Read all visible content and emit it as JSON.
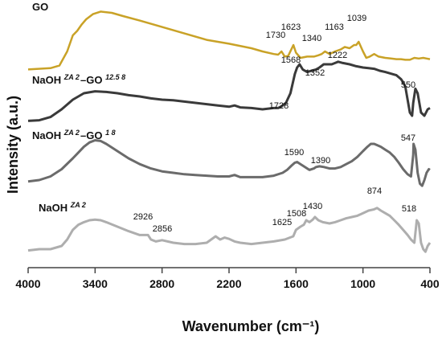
{
  "chart_data": {
    "type": "line",
    "title": "",
    "xlabel": "Wavenumber (cm⁻¹)",
    "ylabel": "Intensity (a.u.)",
    "xlim": [
      4000,
      400
    ],
    "x_reversed": true,
    "x_ticks": [
      4000,
      3400,
      2800,
      2200,
      1600,
      1000,
      400
    ],
    "y_ticks": "none",
    "grid": false,
    "legend": "none",
    "series": [
      {
        "name": "GO",
        "name_parts": {
          "base": "GO",
          "sup": "",
          "mid": "",
          "tail_sup": ""
        },
        "color": "#c9a227",
        "x": [
          4000,
          3800,
          3720,
          3650,
          3600,
          3560,
          3520,
          3480,
          3420,
          3350,
          3250,
          3150,
          3000,
          2800,
          2600,
          2400,
          2200,
          2000,
          1900,
          1800,
          1760,
          1730,
          1700,
          1670,
          1640,
          1623,
          1600,
          1560,
          1500,
          1440,
          1400,
          1370,
          1340,
          1300,
          1250,
          1200,
          1163,
          1120,
          1080,
          1060,
          1039,
          1000,
          970,
          940,
          900,
          860,
          800,
          750,
          700,
          660,
          620,
          580,
          540,
          500,
          460,
          430,
          400
        ],
        "y": [
          0.02,
          0.04,
          0.08,
          0.3,
          0.55,
          0.62,
          0.72,
          0.8,
          0.88,
          0.92,
          0.9,
          0.85,
          0.78,
          0.68,
          0.58,
          0.48,
          0.42,
          0.35,
          0.3,
          0.26,
          0.25,
          0.3,
          0.22,
          0.23,
          0.34,
          0.4,
          0.28,
          0.2,
          0.22,
          0.22,
          0.24,
          0.26,
          0.3,
          0.26,
          0.3,
          0.33,
          0.37,
          0.35,
          0.4,
          0.4,
          0.45,
          0.3,
          0.2,
          0.22,
          0.26,
          0.22,
          0.2,
          0.19,
          0.18,
          0.18,
          0.17,
          0.17,
          0.2,
          0.19,
          0.2,
          0.19,
          0.18
        ]
      },
      {
        "name": "NaOH ZA 2–GO 12.5 8",
        "name_parts": {
          "base": "NaOH ",
          "sup": "ZA 2",
          "mid": "–GO ",
          "tail_sup": "12.5 8"
        },
        "color": "#3a3a3a",
        "x": [
          4000,
          3900,
          3800,
          3700,
          3600,
          3500,
          3400,
          3300,
          3200,
          3100,
          3000,
          2900,
          2800,
          2700,
          2600,
          2500,
          2400,
          2300,
          2200,
          2150,
          2100,
          2000,
          1900,
          1800,
          1760,
          1728,
          1690,
          1650,
          1610,
          1590,
          1568,
          1540,
          1500,
          1460,
          1420,
          1390,
          1352,
          1320,
          1280,
          1250,
          1222,
          1180,
          1120,
          1060,
          1000,
          950,
          900,
          850,
          800,
          760,
          720,
          700,
          680,
          660,
          640,
          620,
          600,
          580,
          560,
          550,
          530,
          510,
          480,
          450,
          420,
          400
        ],
        "y": [
          0.12,
          0.13,
          0.18,
          0.3,
          0.45,
          0.55,
          0.58,
          0.57,
          0.55,
          0.52,
          0.5,
          0.47,
          0.45,
          0.44,
          0.42,
          0.4,
          0.38,
          0.36,
          0.34,
          0.36,
          0.33,
          0.32,
          0.3,
          0.32,
          0.32,
          0.35,
          0.4,
          0.55,
          0.85,
          0.95,
          1.0,
          0.92,
          0.88,
          0.9,
          0.92,
          0.95,
          1.0,
          1.0,
          1.0,
          1.02,
          1.04,
          1.02,
          1.0,
          0.97,
          0.95,
          0.94,
          0.93,
          0.9,
          0.88,
          0.86,
          0.84,
          0.83,
          0.8,
          0.77,
          0.72,
          0.65,
          0.45,
          0.25,
          0.2,
          0.4,
          0.62,
          0.55,
          0.25,
          0.2,
          0.3,
          0.32
        ]
      },
      {
        "name": "NaOH ZA 2–GO 1 8",
        "name_parts": {
          "base": "NaOH ",
          "sup": "ZA 2",
          "mid": "–GO ",
          "tail_sup": "1 8"
        },
        "color": "#6b6b6b",
        "x": [
          4000,
          3900,
          3800,
          3700,
          3600,
          3550,
          3500,
          3450,
          3400,
          3350,
          3300,
          3200,
          3100,
          3000,
          2900,
          2800,
          2700,
          2600,
          2500,
          2400,
          2300,
          2200,
          2150,
          2100,
          2000,
          1900,
          1800,
          1720,
          1680,
          1640,
          1610,
          1590,
          1560,
          1520,
          1480,
          1440,
          1420,
          1390,
          1350,
          1300,
          1250,
          1200,
          1150,
          1100,
          1050,
          1000,
          960,
          930,
          900,
          870,
          840,
          800,
          760,
          720,
          680,
          640,
          600,
          570,
          550,
          547,
          530,
          510,
          490,
          470,
          450,
          430,
          410,
          400
        ],
        "y": [
          0.18,
          0.2,
          0.25,
          0.35,
          0.5,
          0.58,
          0.66,
          0.72,
          0.75,
          0.74,
          0.7,
          0.6,
          0.5,
          0.42,
          0.36,
          0.32,
          0.3,
          0.28,
          0.27,
          0.26,
          0.25,
          0.25,
          0.27,
          0.24,
          0.24,
          0.24,
          0.26,
          0.3,
          0.34,
          0.4,
          0.44,
          0.45,
          0.42,
          0.38,
          0.34,
          0.36,
          0.38,
          0.39,
          0.38,
          0.36,
          0.36,
          0.38,
          0.42,
          0.46,
          0.52,
          0.6,
          0.66,
          0.7,
          0.7,
          0.68,
          0.66,
          0.62,
          0.58,
          0.52,
          0.44,
          0.35,
          0.28,
          0.25,
          0.55,
          0.7,
          0.62,
          0.3,
          0.15,
          0.12,
          0.2,
          0.3,
          0.35,
          0.34
        ]
      },
      {
        "name": "NaOH ZA 2",
        "name_parts": {
          "base": "NaOH ",
          "sup": "ZA 2",
          "mid": "",
          "tail_sup": ""
        },
        "color": "#aeaeae",
        "x": [
          4000,
          3900,
          3800,
          3700,
          3650,
          3600,
          3550,
          3500,
          3450,
          3400,
          3350,
          3300,
          3200,
          3100,
          3000,
          2926,
          2900,
          2856,
          2800,
          2700,
          2600,
          2500,
          2400,
          2320,
          2280,
          2240,
          2200,
          2150,
          2100,
          2000,
          1900,
          1800,
          1700,
          1625,
          1600,
          1560,
          1530,
          1508,
          1480,
          1450,
          1430,
          1400,
          1360,
          1300,
          1250,
          1200,
          1150,
          1100,
          1050,
          1000,
          950,
          900,
          874,
          840,
          800,
          760,
          720,
          680,
          640,
          600,
          570,
          540,
          518,
          500,
          480,
          460,
          440,
          420,
          400
        ],
        "y": [
          0.08,
          0.1,
          0.1,
          0.15,
          0.25,
          0.4,
          0.48,
          0.52,
          0.55,
          0.56,
          0.55,
          0.52,
          0.45,
          0.38,
          0.32,
          0.32,
          0.25,
          0.22,
          0.24,
          0.2,
          0.18,
          0.18,
          0.2,
          0.3,
          0.25,
          0.28,
          0.26,
          0.22,
          0.2,
          0.18,
          0.2,
          0.22,
          0.25,
          0.3,
          0.4,
          0.45,
          0.48,
          0.55,
          0.52,
          0.56,
          0.6,
          0.55,
          0.52,
          0.5,
          0.52,
          0.55,
          0.58,
          0.6,
          0.62,
          0.66,
          0.7,
          0.72,
          0.74,
          0.7,
          0.66,
          0.62,
          0.55,
          0.48,
          0.4,
          0.32,
          0.25,
          0.2,
          0.55,
          0.5,
          0.2,
          0.1,
          0.06,
          0.15,
          0.2
        ]
      }
    ],
    "annotations": [
      {
        "text": "1730",
        "series": 0
      },
      {
        "text": "1623",
        "series": 0
      },
      {
        "text": "1340",
        "series": 0
      },
      {
        "text": "1163",
        "series": 0
      },
      {
        "text": "1039",
        "series": 0
      },
      {
        "text": "1568",
        "series": 1
      },
      {
        "text": "1222",
        "series": 1
      },
      {
        "text": "1352",
        "series": 1
      },
      {
        "text": "1728",
        "series": 1
      },
      {
        "text": "550",
        "series": 1
      },
      {
        "text": "1590",
        "series": 2
      },
      {
        "text": "1390",
        "series": 2
      },
      {
        "text": "547",
        "series": 2
      },
      {
        "text": "874",
        "series": 3
      },
      {
        "text": "1430",
        "series": 3
      },
      {
        "text": "1508",
        "series": 3
      },
      {
        "text": "1625",
        "series": 3
      },
      {
        "text": "518",
        "series": 3
      },
      {
        "text": "2926",
        "series": 3
      },
      {
        "text": "2856",
        "series": 3
      }
    ]
  }
}
